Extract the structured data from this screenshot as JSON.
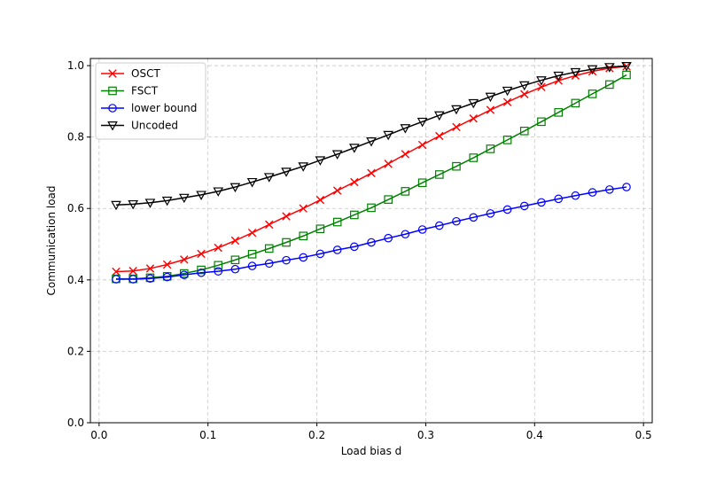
{
  "chart_data": {
    "type": "line",
    "title": "",
    "xlabel": "Load bias d",
    "ylabel": "Communication load",
    "xlim": [
      -0.008,
      0.508
    ],
    "ylim": [
      0.0,
      1.02
    ],
    "xticks": [
      "0.0",
      "0.1",
      "0.2",
      "0.3",
      "0.4",
      "0.5"
    ],
    "xtick_values": [
      0.0,
      0.1,
      0.2,
      0.3,
      0.4,
      0.5
    ],
    "yticks": [
      "0.0",
      "0.2",
      "0.4",
      "0.6",
      "0.8",
      "1.0"
    ],
    "ytick_values": [
      0.0,
      0.2,
      0.4,
      0.6,
      0.8,
      1.0
    ],
    "grid": true,
    "legend_position": "top-left",
    "x": [
      0.0156,
      0.0312,
      0.0469,
      0.0625,
      0.0781,
      0.0938,
      0.1094,
      0.125,
      0.1406,
      0.1562,
      0.1719,
      0.1875,
      0.2031,
      0.2188,
      0.2344,
      0.25,
      0.2656,
      0.2812,
      0.2969,
      0.3125,
      0.3281,
      0.3438,
      0.3594,
      0.375,
      0.3906,
      0.4062,
      0.4219,
      0.4375,
      0.4531,
      0.4688,
      0.4844
    ],
    "series": [
      {
        "name": "OSCT",
        "color": "#ff0000",
        "marker": "x",
        "values": [
          0.423,
          0.425,
          0.432,
          0.443,
          0.457,
          0.473,
          0.49,
          0.51,
          0.532,
          0.555,
          0.578,
          0.6,
          0.624,
          0.65,
          0.674,
          0.699,
          0.725,
          0.752,
          0.778,
          0.803,
          0.828,
          0.852,
          0.876,
          0.898,
          0.92,
          0.94,
          0.958,
          0.972,
          0.984,
          0.993,
          0.998
        ]
      },
      {
        "name": "FSCT",
        "color": "#008000",
        "marker": "square",
        "values": [
          0.403,
          0.403,
          0.406,
          0.41,
          0.418,
          0.428,
          0.441,
          0.456,
          0.472,
          0.488,
          0.505,
          0.523,
          0.543,
          0.562,
          0.582,
          0.602,
          0.625,
          0.648,
          0.672,
          0.695,
          0.718,
          0.742,
          0.767,
          0.792,
          0.817,
          0.843,
          0.869,
          0.895,
          0.921,
          0.947,
          0.974
        ]
      },
      {
        "name": "lower bound",
        "color": "#0000ff",
        "marker": "circle",
        "values": [
          0.402,
          0.402,
          0.404,
          0.408,
          0.414,
          0.42,
          0.424,
          0.43,
          0.439,
          0.446,
          0.455,
          0.463,
          0.473,
          0.484,
          0.493,
          0.505,
          0.517,
          0.528,
          0.541,
          0.552,
          0.564,
          0.575,
          0.586,
          0.597,
          0.607,
          0.617,
          0.627,
          0.636,
          0.645,
          0.653,
          0.66
        ]
      },
      {
        "name": "Uncoded",
        "color": "#000000",
        "marker": "triangle-down",
        "values": [
          0.61,
          0.612,
          0.616,
          0.622,
          0.63,
          0.638,
          0.648,
          0.66,
          0.674,
          0.688,
          0.703,
          0.718,
          0.735,
          0.752,
          0.77,
          0.788,
          0.806,
          0.825,
          0.843,
          0.861,
          0.878,
          0.895,
          0.913,
          0.93,
          0.945,
          0.959,
          0.972,
          0.982,
          0.99,
          0.996,
          0.999
        ]
      }
    ]
  }
}
